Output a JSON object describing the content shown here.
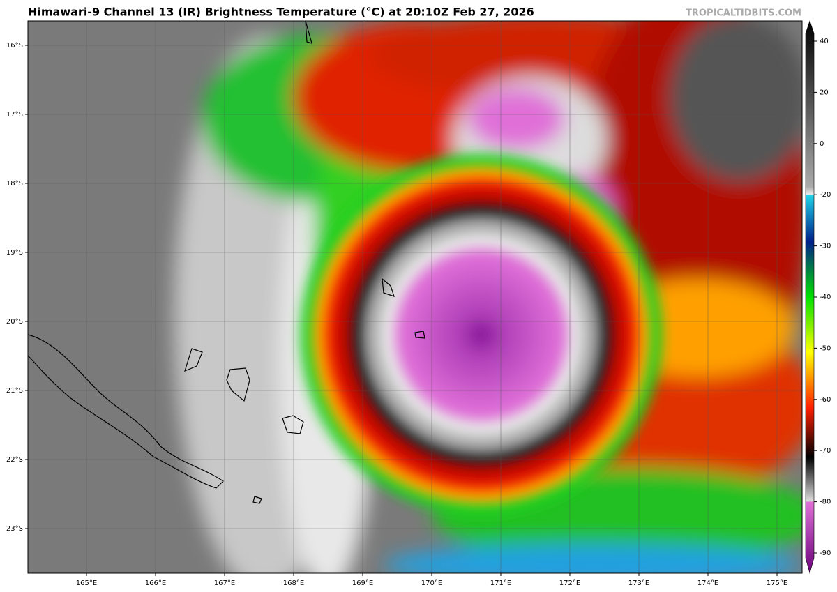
{
  "header": {
    "title": "Himawari-9 Channel 13 (IR) Brightness Temperature (°C) at 20:10Z Feb 27, 2026",
    "credit": "TROPICALTIDBITS.COM"
  },
  "lat_labels": [
    "16°S",
    "17°S",
    "18°S",
    "19°S",
    "20°S",
    "21°S",
    "22°S",
    "23°S"
  ],
  "lon_labels": [
    "165°E",
    "166°E",
    "167°E",
    "168°E",
    "169°E",
    "170°E",
    "171°E",
    "172°E",
    "173°E",
    "174°E",
    "175°E"
  ],
  "colorbar": {
    "ticks": [
      40,
      20,
      0,
      -20,
      -30,
      -40,
      -50,
      -60,
      -70,
      -80,
      -90
    ]
  }
}
